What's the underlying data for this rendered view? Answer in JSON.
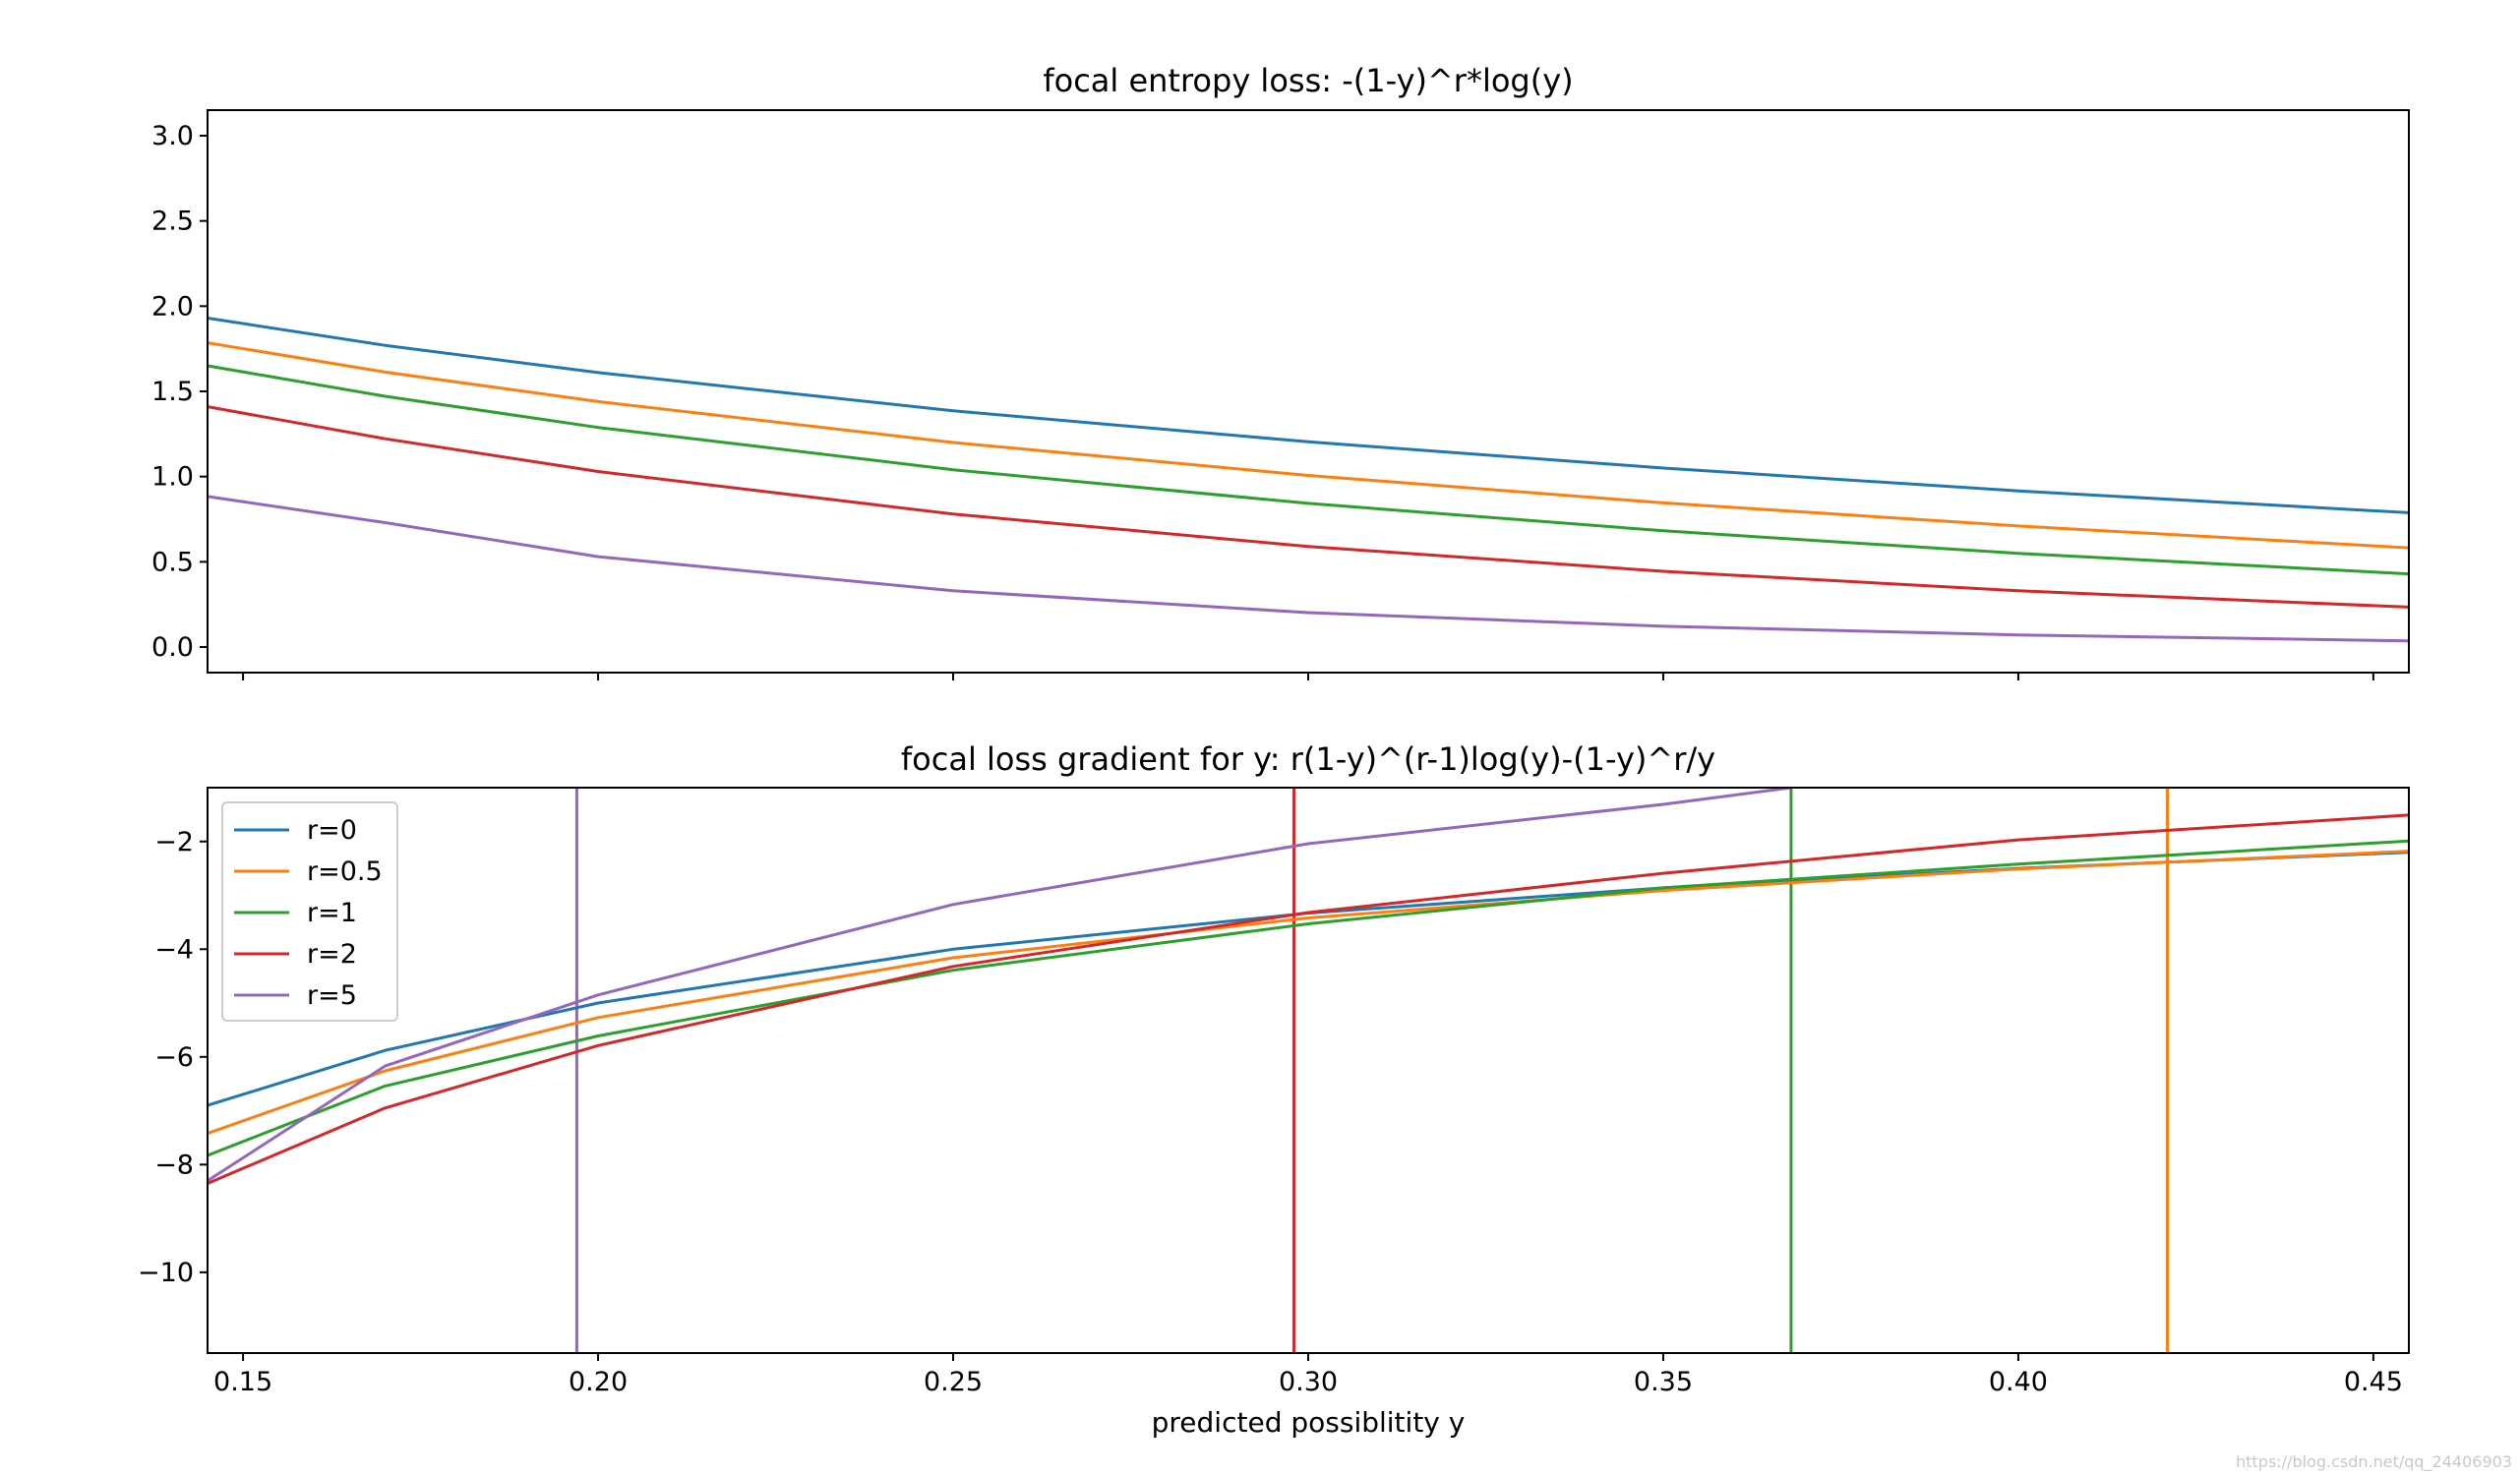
{
  "chart_data": [
    {
      "type": "line",
      "title": "focal entropy loss: -(1-y)^r*log(y)",
      "xlabel": "",
      "ylabel": "",
      "xlim": [
        0.145,
        0.455
      ],
      "ylim": [
        -0.15,
        3.15
      ],
      "xticks": [
        0.15,
        0.2,
        0.25,
        0.3,
        0.35,
        0.4,
        0.45
      ],
      "xtick_labels": [],
      "yticks": [
        0.0,
        0.5,
        1.0,
        1.5,
        2.0,
        2.5,
        3.0
      ],
      "ytick_labels": [
        "0.0",
        "0.5",
        "1.0",
        "1.5",
        "2.0",
        "2.5",
        "3.0"
      ],
      "series": [
        {
          "name": "r=0",
          "color": "#1f77b4",
          "x": [
            0.145,
            0.17,
            0.2,
            0.25,
            0.3,
            0.35,
            0.4,
            0.455
          ],
          "y": [
            1.93,
            1.77,
            1.61,
            1.386,
            1.204,
            1.05,
            0.916,
            0.788
          ]
        },
        {
          "name": "r=0.5",
          "color": "#ff7f0e",
          "x": [
            0.145,
            0.17,
            0.2,
            0.25,
            0.3,
            0.35,
            0.4,
            0.455
          ],
          "y": [
            1.785,
            1.613,
            1.44,
            1.2,
            1.007,
            0.846,
            0.71,
            0.582
          ]
        },
        {
          "name": "r=1",
          "color": "#2ca02c",
          "x": [
            0.145,
            0.17,
            0.2,
            0.25,
            0.3,
            0.35,
            0.4,
            0.455
          ],
          "y": [
            1.65,
            1.471,
            1.288,
            1.04,
            0.843,
            0.682,
            0.55,
            0.429
          ]
        },
        {
          "name": "r=2",
          "color": "#d62728",
          "x": [
            0.145,
            0.17,
            0.2,
            0.25,
            0.3,
            0.35,
            0.4,
            0.455
          ],
          "y": [
            1.41,
            1.222,
            1.03,
            0.78,
            0.59,
            0.444,
            0.33,
            0.234
          ]
        },
        {
          "name": "r=5",
          "color": "#9467bd",
          "x": [
            0.145,
            0.17,
            0.2,
            0.25,
            0.3,
            0.35,
            0.4,
            0.455
          ],
          "y": [
            0.883,
            0.73,
            0.53,
            0.33,
            0.202,
            0.122,
            0.071,
            0.036
          ]
        }
      ]
    },
    {
      "type": "line",
      "title": "focal loss gradient for y: r(1-y)^(r-1)log(y)-(1-y)^r/y",
      "xlabel": "predicted possiblitity y",
      "ylabel": "",
      "xlim": [
        0.145,
        0.455
      ],
      "ylim": [
        -11.5,
        -1.0
      ],
      "xticks": [
        0.15,
        0.2,
        0.25,
        0.3,
        0.35,
        0.4,
        0.45
      ],
      "xtick_labels": [
        "0.15",
        "0.20",
        "0.25",
        "0.30",
        "0.35",
        "0.40",
        "0.45"
      ],
      "yticks": [
        -10,
        -8,
        -6,
        -4,
        -2
      ],
      "ytick_labels": [
        "−10",
        "−8",
        "−6",
        "−4",
        "−2"
      ],
      "legend_position": "upper-left",
      "series": [
        {
          "name": "r=0",
          "color": "#1f77b4",
          "x": [
            0.145,
            0.17,
            0.2,
            0.25,
            0.3,
            0.35,
            0.4,
            0.455
          ],
          "y": [
            -6.9,
            -5.88,
            -5.0,
            -4.0,
            -3.33,
            -2.86,
            -2.5,
            -2.2
          ]
        },
        {
          "name": "r=0.5",
          "color": "#ff7f0e",
          "x": [
            0.145,
            0.17,
            0.2,
            0.25,
            0.3,
            0.35,
            0.4,
            0.455
          ],
          "y": [
            -7.42,
            -6.26,
            -5.27,
            -4.16,
            -3.42,
            -2.91,
            -2.51,
            -2.18
          ]
        },
        {
          "name": "r=1",
          "color": "#2ca02c",
          "x": [
            0.145,
            0.17,
            0.2,
            0.25,
            0.3,
            0.35,
            0.4,
            0.455
          ],
          "y": [
            -7.83,
            -6.54,
            -5.61,
            -4.39,
            -3.53,
            -2.86,
            -2.42,
            -1.99
          ]
        },
        {
          "name": "r=2",
          "color": "#d62728",
          "x": [
            0.145,
            0.17,
            0.2,
            0.25,
            0.3,
            0.35,
            0.4,
            0.455
          ],
          "y": [
            -8.35,
            -6.95,
            -5.79,
            -4.32,
            -3.32,
            -2.59,
            -1.97,
            -1.51
          ]
        },
        {
          "name": "r=5",
          "color": "#9467bd",
          "x": [
            0.145,
            0.17,
            0.2,
            0.25,
            0.3,
            0.35,
            0.368
          ],
          "y": [
            -8.3,
            -6.17,
            -4.85,
            -3.17,
            -2.04,
            -1.31,
            -1.0
          ]
        }
      ],
      "vertical_lines": [
        {
          "name": "r=5",
          "color": "#9467bd",
          "x": 0.197
        },
        {
          "name": "r=2",
          "color": "#d62728",
          "x": 0.298
        },
        {
          "name": "r=1",
          "color": "#2ca02c",
          "x": 0.368
        },
        {
          "name": "r=0.5",
          "color": "#ff7f0e",
          "x": 0.421
        }
      ]
    }
  ],
  "watermark": "https://blog.csdn.net/qq_24406903"
}
